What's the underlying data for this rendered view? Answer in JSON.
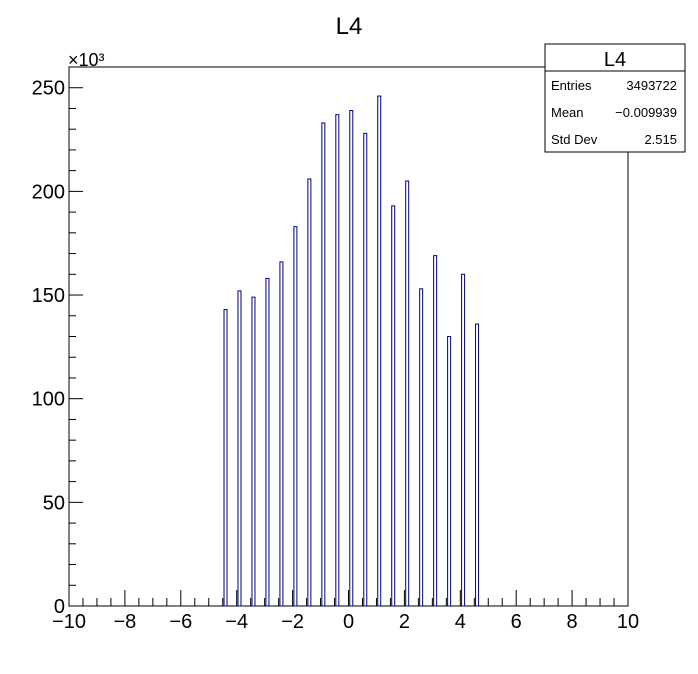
{
  "chart_data": {
    "type": "bar",
    "title": "L4",
    "xlabel": "",
    "ylabel": "",
    "xlim": [
      -10,
      10
    ],
    "ylim": [
      0,
      260
    ],
    "y_multiplier_label": "×10³",
    "x_ticks": [
      "−10",
      "−8",
      "−6",
      "−4",
      "−2",
      "0",
      "2",
      "4",
      "6",
      "8",
      "10"
    ],
    "y_ticks": [
      "0",
      "50",
      "100",
      "150",
      "200",
      "250"
    ],
    "series": [
      {
        "x": [
          -4.4,
          -3.9,
          -3.4,
          -2.9,
          -2.4,
          -1.9,
          -1.4,
          -0.9,
          -0.4,
          0.1,
          0.6,
          1.1,
          1.6,
          2.1,
          2.6,
          3.1,
          3.6,
          4.1,
          4.6
        ],
        "values": [
          143,
          152,
          149,
          158,
          166,
          183,
          206,
          233,
          237,
          239,
          228,
          246,
          193,
          205,
          153,
          169,
          130,
          160,
          136
        ]
      }
    ],
    "bar_color": "#000080",
    "stats_box": {
      "title": "L4",
      "rows": [
        {
          "label": "Entries",
          "value": "3493722"
        },
        {
          "label": "Mean",
          "value": "−0.009939"
        },
        {
          "label": "Std Dev",
          "value": "2.515"
        }
      ]
    }
  }
}
